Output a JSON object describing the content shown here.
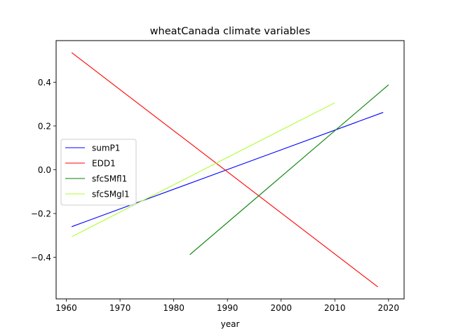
{
  "chart_data": {
    "type": "line",
    "title": "wheatCanada climate variables",
    "xlabel": "year",
    "ylabel": "",
    "xlim": [
      1958.1,
      2022.9
    ],
    "ylim": [
      -0.59,
      0.59
    ],
    "xticks": [
      1960,
      1970,
      1980,
      1990,
      2000,
      2010,
      2020
    ],
    "yticks": [
      -0.4,
      -0.2,
      0.0,
      0.2,
      0.4
    ],
    "xtick_labels": [
      "1960",
      "1970",
      "1980",
      "1990",
      "2000",
      "2010",
      "2020"
    ],
    "ytick_labels": [
      "−0.4",
      "−0.2",
      "0.0",
      "0.2",
      "0.4"
    ],
    "grid": false,
    "legend_position": "center-left",
    "series": [
      {
        "name": "sumP1",
        "color": "#0000ff",
        "x": [
          1961,
          2019
        ],
        "y": [
          -0.26,
          0.262
        ]
      },
      {
        "name": "EDD1",
        "color": "#ff0000",
        "x": [
          1961,
          2018
        ],
        "y": [
          0.535,
          -0.535
        ]
      },
      {
        "name": "sfcSMfl1",
        "color": "#008000",
        "x": [
          1983,
          2020
        ],
        "y": [
          -0.388,
          0.388
        ]
      },
      {
        "name": "sfcSMgl1",
        "color": "#adff2f",
        "x": [
          1961,
          2010
        ],
        "y": [
          -0.306,
          0.306
        ]
      }
    ]
  }
}
